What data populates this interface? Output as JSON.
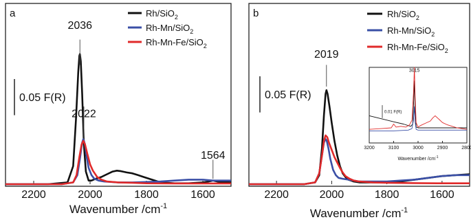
{
  "figure": {
    "background": "#ffffff",
    "axis_color": "#222222"
  },
  "series_colors": {
    "Rh/SiO2": "#111111",
    "Rh-Mn/SiO2": "#3a4fa6",
    "Rh-Mn-Fe/SiO2": "#e02a2a"
  },
  "chart_data": [
    {
      "type": "line",
      "panel_label": "a",
      "xlabel": "Wavenumber /cm",
      "xlabel_sup": "-1",
      "ylabel": "",
      "xlim": [
        2300,
        1500
      ],
      "x_reversed": true,
      "ylim": [
        0,
        1.0
      ],
      "xticks": [
        2200,
        2000,
        1800,
        1600
      ],
      "grid": false,
      "legend": {
        "placement": "top-right",
        "entries": [
          {
            "label": "Rh/SiO",
            "sub": "2",
            "color": "#111111"
          },
          {
            "label": "Rh-Mn/SiO",
            "sub": "2",
            "color": "#3a4fa6"
          },
          {
            "label": "Rh-Mn-Fe/SiO",
            "sub": "2",
            "color": "#e02a2a"
          }
        ]
      },
      "scalebar": {
        "label": "0.05 F(R)",
        "value": 0.2
      },
      "annotations": [
        {
          "text": "2036",
          "x": 2036,
          "y": 0.86,
          "line_from": 0.8,
          "line_to": 0.66
        },
        {
          "text": "2022",
          "x": 2022,
          "y": 0.37,
          "line_from": 0.43,
          "line_to": 0.25
        },
        {
          "text": "1564",
          "x": 1564,
          "y": 0.14,
          "line_from": 0.135,
          "line_to": 0.03
        }
      ],
      "series": [
        {
          "name": "Rh/SiO2",
          "color": "#111111",
          "x": [
            2300,
            2150,
            2080,
            2060,
            2050,
            2042,
            2038,
            2036,
            2033,
            2028,
            2022,
            2015,
            2005,
            1995,
            1980,
            1960,
            1940,
            1920,
            1905,
            1890,
            1870,
            1850,
            1830,
            1810,
            1790,
            1770,
            1750,
            1700,
            1650,
            1600,
            1580,
            1564,
            1540,
            1500
          ],
          "y": [
            0.0,
            0.0,
            0.01,
            0.1,
            0.36,
            0.62,
            0.71,
            0.72,
            0.68,
            0.5,
            0.22,
            0.07,
            0.02,
            0.02,
            0.03,
            0.04,
            0.055,
            0.07,
            0.075,
            0.072,
            0.065,
            0.06,
            0.05,
            0.04,
            0.03,
            0.02,
            0.01,
            0.005,
            0.005,
            0.01,
            0.015,
            0.02,
            0.012,
            0.01
          ]
        },
        {
          "name": "Rh-Mn/SiO2",
          "color": "#3a4fa6",
          "x": [
            2300,
            2100,
            2060,
            2045,
            2035,
            2028,
            2024,
            2018,
            2012,
            2005,
            1995,
            1985,
            1970,
            1950,
            1900,
            1850,
            1800,
            1750,
            1700,
            1650,
            1600,
            1564,
            1530,
            1500
          ],
          "y": [
            0.0,
            0.0,
            0.01,
            0.05,
            0.15,
            0.23,
            0.25,
            0.22,
            0.15,
            0.09,
            0.05,
            0.03,
            0.02,
            0.015,
            0.01,
            0.01,
            0.012,
            0.015,
            0.02,
            0.025,
            0.025,
            0.02,
            0.02,
            0.02
          ]
        },
        {
          "name": "Rh-Mn-Fe/SiO2",
          "color": "#e02a2a",
          "x": [
            2300,
            2100,
            2060,
            2048,
            2038,
            2030,
            2024,
            2018,
            2010,
            2000,
            1990,
            1975,
            1960,
            1940,
            1900,
            1850,
            1800,
            1700,
            1600,
            1564,
            1500
          ],
          "y": [
            0.0,
            0.0,
            0.01,
            0.05,
            0.15,
            0.22,
            0.24,
            0.22,
            0.17,
            0.11,
            0.075,
            0.04,
            0.025,
            0.015,
            0.01,
            0.008,
            0.005,
            0.004,
            0.004,
            0.004,
            0.004
          ]
        }
      ]
    },
    {
      "type": "line",
      "panel_label": "b",
      "xlabel": "Wavenumber /cm",
      "xlabel_sup": "-1",
      "ylabel": "",
      "xlim": [
        2300,
        1500
      ],
      "x_reversed": true,
      "ylim": [
        0,
        1.0
      ],
      "xticks": [
        2200,
        2000,
        1800,
        1600
      ],
      "grid": false,
      "legend": {
        "placement": "top-right",
        "entries": [
          {
            "label": "Rh/SiO",
            "sub": "2",
            "color": "#111111"
          },
          {
            "label": "Rh-Mn/SiO",
            "sub": "2",
            "color": "#3a4fa6"
          },
          {
            "label": "Rh-Mn-Fe/SiO",
            "sub": "2",
            "color": "#e02a2a"
          }
        ]
      },
      "scalebar": {
        "label": "0.05 F(R)",
        "value": 0.2
      },
      "annotations": [
        {
          "text": "2019",
          "x": 2019,
          "y": 0.7,
          "line_from": 0.66,
          "line_to": 0.54
        }
      ],
      "series": [
        {
          "name": "Rh/SiO2",
          "color": "#111111",
          "x": [
            2300,
            2100,
            2060,
            2045,
            2035,
            2028,
            2022,
            2019,
            2015,
            2008,
            2000,
            1990,
            1980,
            1970,
            1960,
            1950,
            1940,
            1930,
            1920,
            1900,
            1850,
            1800,
            1750,
            1700,
            1650,
            1600,
            1550,
            1500
          ],
          "y": [
            0.0,
            0.0,
            0.01,
            0.05,
            0.2,
            0.38,
            0.5,
            0.52,
            0.5,
            0.43,
            0.34,
            0.24,
            0.16,
            0.1,
            0.06,
            0.04,
            0.025,
            0.02,
            0.015,
            0.01,
            0.01,
            0.01,
            0.015,
            0.025,
            0.035,
            0.045,
            0.05,
            0.055
          ]
        },
        {
          "name": "Rh-Mn/SiO2",
          "color": "#3a4fa6",
          "x": [
            2300,
            2100,
            2060,
            2045,
            2035,
            2028,
            2022,
            2018,
            2012,
            2005,
            1995,
            1985,
            1975,
            1960,
            1940,
            1920,
            1900,
            1850,
            1800,
            1750,
            1700,
            1650,
            1600,
            1550,
            1500
          ],
          "y": [
            0.0,
            0.0,
            0.01,
            0.06,
            0.16,
            0.23,
            0.25,
            0.24,
            0.2,
            0.14,
            0.08,
            0.05,
            0.035,
            0.03,
            0.025,
            0.02,
            0.015,
            0.015,
            0.015,
            0.02,
            0.025,
            0.035,
            0.045,
            0.05,
            0.05
          ]
        },
        {
          "name": "Rh-Mn-Fe/SiO2",
          "color": "#e02a2a",
          "x": [
            2300,
            2100,
            2060,
            2045,
            2035,
            2028,
            2022,
            2016,
            2010,
            2000,
            1990,
            1980,
            1970,
            1960,
            1950,
            1935,
            1920,
            1900,
            1850,
            1800,
            1750,
            1700,
            1600,
            1500
          ],
          "y": [
            0.0,
            0.0,
            0.01,
            0.06,
            0.16,
            0.24,
            0.27,
            0.26,
            0.23,
            0.19,
            0.15,
            0.12,
            0.09,
            0.065,
            0.045,
            0.03,
            0.02,
            0.015,
            0.01,
            0.008,
            0.007,
            0.006,
            0.005,
            0.005
          ]
        }
      ],
      "inset": {
        "type": "line",
        "xlim": [
          3200,
          2800
        ],
        "x_reversed": true,
        "ylim": [
          0,
          1.0
        ],
        "xticks": [
          3200,
          3100,
          3000,
          2900,
          2800
        ],
        "xlabel": "Wavenumber /cm",
        "xlabel_sup": "-1",
        "scalebar": {
          "label": "0.01 F(R)",
          "value": 0.17
        },
        "annotations": [
          {
            "text": "3015",
            "x": 3015,
            "y": 0.94
          }
        ],
        "series": [
          {
            "name": "Rh/SiO2",
            "color": "#111111",
            "x": [
              3200,
              3150,
              3100,
              3060,
              3030,
              3022,
              3018,
              3015,
              3012,
              3008,
              3000,
              2950,
              2900,
              2850,
              2800
            ],
            "y": [
              0.36,
              0.32,
              0.28,
              0.25,
              0.22,
              0.25,
              0.55,
              0.82,
              0.45,
              0.21,
              0.2,
              0.2,
              0.2,
              0.2,
              0.2
            ]
          },
          {
            "name": "Rh-Mn/SiO2",
            "color": "#3a4fa6",
            "x": [
              3200,
              3100,
              3040,
              3025,
              3019,
              3015,
              3012,
              3008,
              3000,
              2950,
              2900,
              2850,
              2800
            ],
            "y": [
              0.16,
              0.16,
              0.17,
              0.19,
              0.3,
              0.48,
              0.28,
              0.18,
              0.17,
              0.17,
              0.17,
              0.17,
              0.17
            ]
          },
          {
            "name": "Rh-Mn-Fe/SiO2",
            "color": "#e02a2a",
            "x": [
              3200,
              3150,
              3110,
              3100,
              3090,
              3070,
              3050,
              3035,
              3025,
              3019,
              3015,
              3012,
              3008,
              3000,
              2990,
              2970,
              2950,
              2940,
              2930,
              2920,
              2910,
              2900,
              2880,
              2860,
              2840,
              2820,
              2800
            ],
            "y": [
              0.18,
              0.19,
              0.2,
              0.25,
              0.21,
              0.22,
              0.21,
              0.24,
              0.3,
              0.65,
              1.0,
              0.62,
              0.27,
              0.21,
              0.23,
              0.26,
              0.29,
              0.33,
              0.36,
              0.33,
              0.3,
              0.27,
              0.24,
              0.22,
              0.2,
              0.19,
              0.18
            ]
          }
        ]
      }
    }
  ]
}
